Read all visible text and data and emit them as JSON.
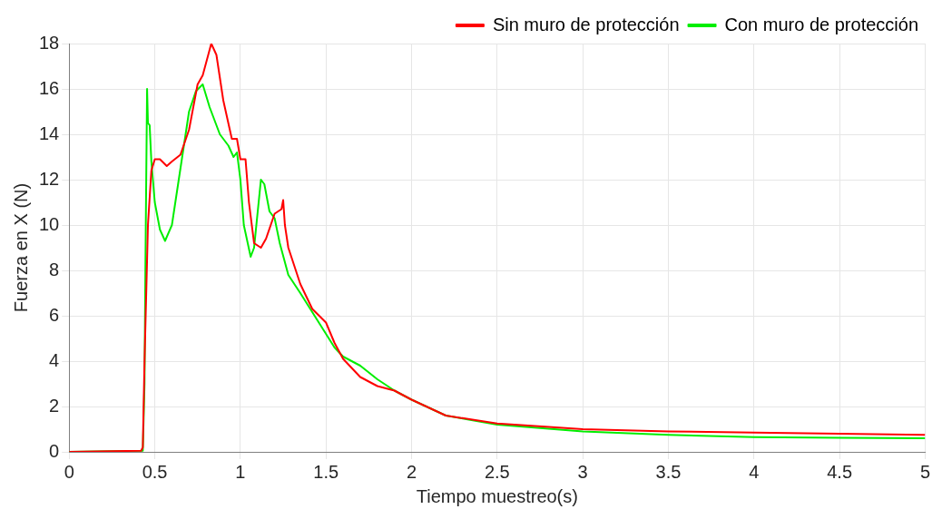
{
  "chart_data": {
    "type": "line",
    "xlabel": "Tiempo muestreo(s)",
    "ylabel": "Fuerza en X (N)",
    "xlim": [
      0,
      5
    ],
    "xticks": [
      0,
      0.5,
      1,
      1.5,
      2,
      2.5,
      3,
      3.5,
      4,
      4.5,
      5
    ],
    "ylim": [
      0,
      18
    ],
    "yticks": [
      0,
      2,
      4,
      6,
      8,
      10,
      12,
      14,
      16,
      18
    ],
    "grid": true,
    "legend": "top right",
    "marker": "none",
    "line_style": "solid",
    "series": [
      {
        "name": "Sin muro de protección",
        "color": "#ff0000",
        "x": [
          0,
          0.42,
          0.43,
          0.44,
          0.46,
          0.48,
          0.5,
          0.53,
          0.57,
          0.6,
          0.65,
          0.7,
          0.75,
          0.78,
          0.83,
          0.86,
          0.9,
          0.95,
          0.98,
          1.0,
          1.03,
          1.05,
          1.08,
          1.12,
          1.15,
          1.2,
          1.24,
          1.25,
          1.26,
          1.28,
          1.35,
          1.42,
          1.5,
          1.55,
          1.6,
          1.7,
          1.8,
          1.9,
          2.0,
          2.2,
          2.5,
          3,
          3.5,
          4,
          4.5,
          5
        ],
        "values": [
          0,
          0.05,
          0.2,
          4,
          10,
          12.4,
          12.9,
          12.9,
          12.6,
          12.8,
          13.1,
          14.2,
          16.2,
          16.6,
          18,
          17.5,
          15.5,
          13.8,
          13.8,
          12.9,
          12.9,
          11,
          9.2,
          9,
          9.4,
          10.5,
          10.7,
          11.1,
          10,
          9,
          7.4,
          6.3,
          5.7,
          4.8,
          4.1,
          3.3,
          2.9,
          2.7,
          2.3,
          1.6,
          1.25,
          1,
          0.9,
          0.85,
          0.8,
          0.75
        ]
      },
      {
        "name": "Con muro de protección",
        "color": "#00ee00",
        "x": [
          0,
          0.43,
          0.44,
          0.445,
          0.455,
          0.46,
          0.47,
          0.48,
          0.5,
          0.53,
          0.56,
          0.6,
          0.65,
          0.7,
          0.74,
          0.78,
          0.82,
          0.88,
          0.93,
          0.96,
          0.98,
          1.0,
          1.02,
          1.06,
          1.08,
          1.12,
          1.14,
          1.17,
          1.2,
          1.23,
          1.28,
          1.35,
          1.45,
          1.55,
          1.6,
          1.7,
          1.8,
          1.9,
          2.0,
          2.2,
          2.5,
          3,
          3.5,
          4,
          4.5,
          5
        ],
        "values": [
          0,
          0.05,
          3,
          8,
          16,
          14.5,
          14.4,
          12.8,
          11,
          9.8,
          9.3,
          10,
          12.5,
          15,
          15.9,
          16.2,
          15.2,
          14,
          13.5,
          13,
          13.2,
          12,
          10,
          8.6,
          9,
          12,
          11.8,
          10.6,
          10.3,
          9.2,
          7.8,
          7,
          5.8,
          4.6,
          4.2,
          3.8,
          3.2,
          2.7,
          2.3,
          1.6,
          1.2,
          0.9,
          0.75,
          0.65,
          0.62,
          0.6
        ]
      }
    ]
  }
}
